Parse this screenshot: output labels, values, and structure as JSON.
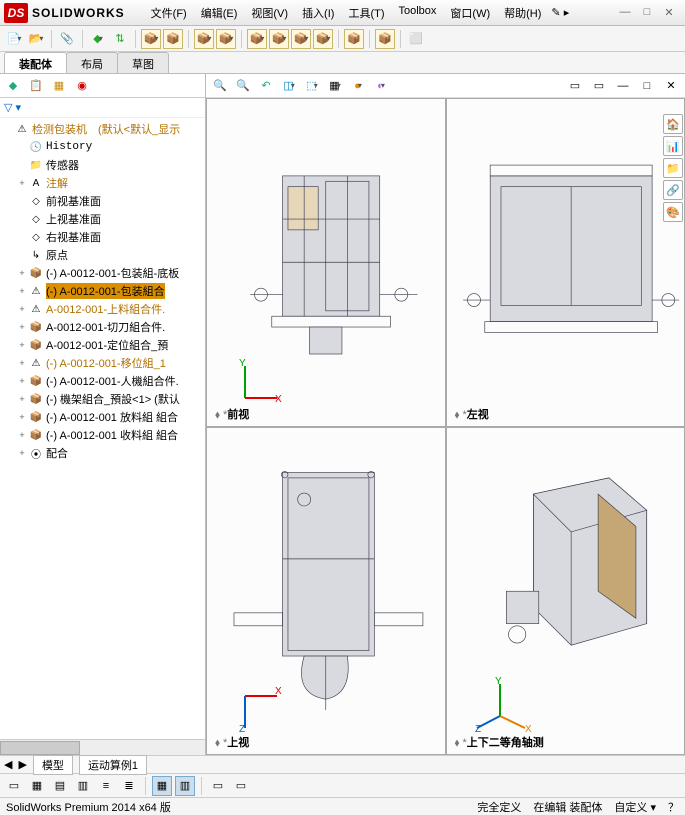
{
  "app": {
    "brand": "SOLIDWORKS",
    "logo": "DS"
  },
  "menu": [
    "文件(F)",
    "编辑(E)",
    "视图(V)",
    "插入(I)",
    "工具(T)",
    "Toolbox",
    "窗口(W)",
    "帮助(H)"
  ],
  "winbuttons": [
    "—",
    "□",
    "✕"
  ],
  "tabs": [
    {
      "label": "装配体",
      "active": true
    },
    {
      "label": "布局",
      "active": false
    },
    {
      "label": "草图",
      "active": false
    }
  ],
  "filter_text": "▽ ▾",
  "tree": [
    {
      "d": 0,
      "exp": "",
      "ico": "⚠",
      "lbl": "检测包装机　(默认<默认_显示",
      "cls": "nlabel",
      "color": "#b07000"
    },
    {
      "d": 1,
      "exp": "",
      "ico": "🕓",
      "lbl": "History",
      "cls": "nlabel",
      "mono": true
    },
    {
      "d": 1,
      "exp": "",
      "ico": "📁",
      "lbl": "传感器",
      "cls": "nlabel"
    },
    {
      "d": 1,
      "exp": "+",
      "ico": "A",
      "lbl": "注解",
      "cls": "nlabel",
      "color": "#b07000"
    },
    {
      "d": 1,
      "exp": "",
      "ico": "◇",
      "lbl": "前视基准面",
      "cls": "nlabel"
    },
    {
      "d": 1,
      "exp": "",
      "ico": "◇",
      "lbl": "上视基准面",
      "cls": "nlabel"
    },
    {
      "d": 1,
      "exp": "",
      "ico": "◇",
      "lbl": "右视基准面",
      "cls": "nlabel"
    },
    {
      "d": 1,
      "exp": "",
      "ico": "↳",
      "lbl": "原点",
      "cls": "nlabel"
    },
    {
      "d": 1,
      "exp": "+",
      "ico": "📦",
      "lbl": "(-) A-0012-001-包装組-底板",
      "cls": "nlabel"
    },
    {
      "d": 1,
      "exp": "+",
      "ico": "⚠",
      "lbl": "(-) A-0012-001-包装組合",
      "cls": "nlabel sel",
      "color": "#000"
    },
    {
      "d": 1,
      "exp": "+",
      "ico": "⚠",
      "lbl": "A-0012-001-上料組合件.",
      "cls": "nlabel",
      "color": "#b07000"
    },
    {
      "d": 1,
      "exp": "+",
      "ico": "📦",
      "lbl": "A-0012-001-切刀組合件.",
      "cls": "nlabel"
    },
    {
      "d": 1,
      "exp": "+",
      "ico": "📦",
      "lbl": "A-0012-001-定位組合_預",
      "cls": "nlabel"
    },
    {
      "d": 1,
      "exp": "+",
      "ico": "⚠",
      "lbl": "(-) A-0012-001-移位組_1",
      "cls": "nlabel",
      "color": "#b07000"
    },
    {
      "d": 1,
      "exp": "+",
      "ico": "📦",
      "lbl": "(-) A-0012-001-人機組合件.",
      "cls": "nlabel"
    },
    {
      "d": 1,
      "exp": "+",
      "ico": "📦",
      "lbl": "(-) 機架組合_預設<1> (默认",
      "cls": "nlabel"
    },
    {
      "d": 1,
      "exp": "+",
      "ico": "📦",
      "lbl": "(-) A-0012-001 放料組 組合",
      "cls": "nlabel"
    },
    {
      "d": 1,
      "exp": "+",
      "ico": "📦",
      "lbl": "(-) A-0012-001 收料組 組合",
      "cls": "nlabel"
    },
    {
      "d": 1,
      "exp": "+",
      "ico": "⦿",
      "lbl": "配合",
      "cls": "nlabel"
    }
  ],
  "viewports": [
    {
      "label": "前视",
      "triad": {
        "axes": [
          [
            "Y",
            "#0a0",
            "v"
          ],
          [
            "X",
            "#e00",
            "h"
          ]
        ]
      }
    },
    {
      "label": "左视",
      "triad": null
    },
    {
      "label": "上视",
      "triad": {
        "axes": [
          [
            "X",
            "#e00",
            "h"
          ],
          [
            "Z",
            "#06c",
            "v"
          ]
        ]
      }
    },
    {
      "label": "上下二等角轴测",
      "triad": {
        "axes": [
          [
            "Y",
            "#0a0",
            "v"
          ],
          [
            "X",
            "#e00",
            "d1"
          ],
          [
            "Z",
            "#06c",
            "d2"
          ]
        ]
      }
    }
  ],
  "bottom_tabs_small": [
    "◀",
    "▶",
    "模型",
    "运动算例1"
  ],
  "statusbar": {
    "left": "SolidWorks Premium 2014 x64 版",
    "items": [
      "完全定义",
      "在编辑 装配体",
      "自定义 ▾",
      "？"
    ]
  },
  "colors": {
    "accent": "#d98f00",
    "warn": "#f0c400",
    "ax_x": "#e00000",
    "ax_y": "#00a000",
    "ax_z": "#0060c0"
  },
  "rightdock": [
    "🏠",
    "📊",
    "📁",
    "🔗",
    "🎨"
  ]
}
